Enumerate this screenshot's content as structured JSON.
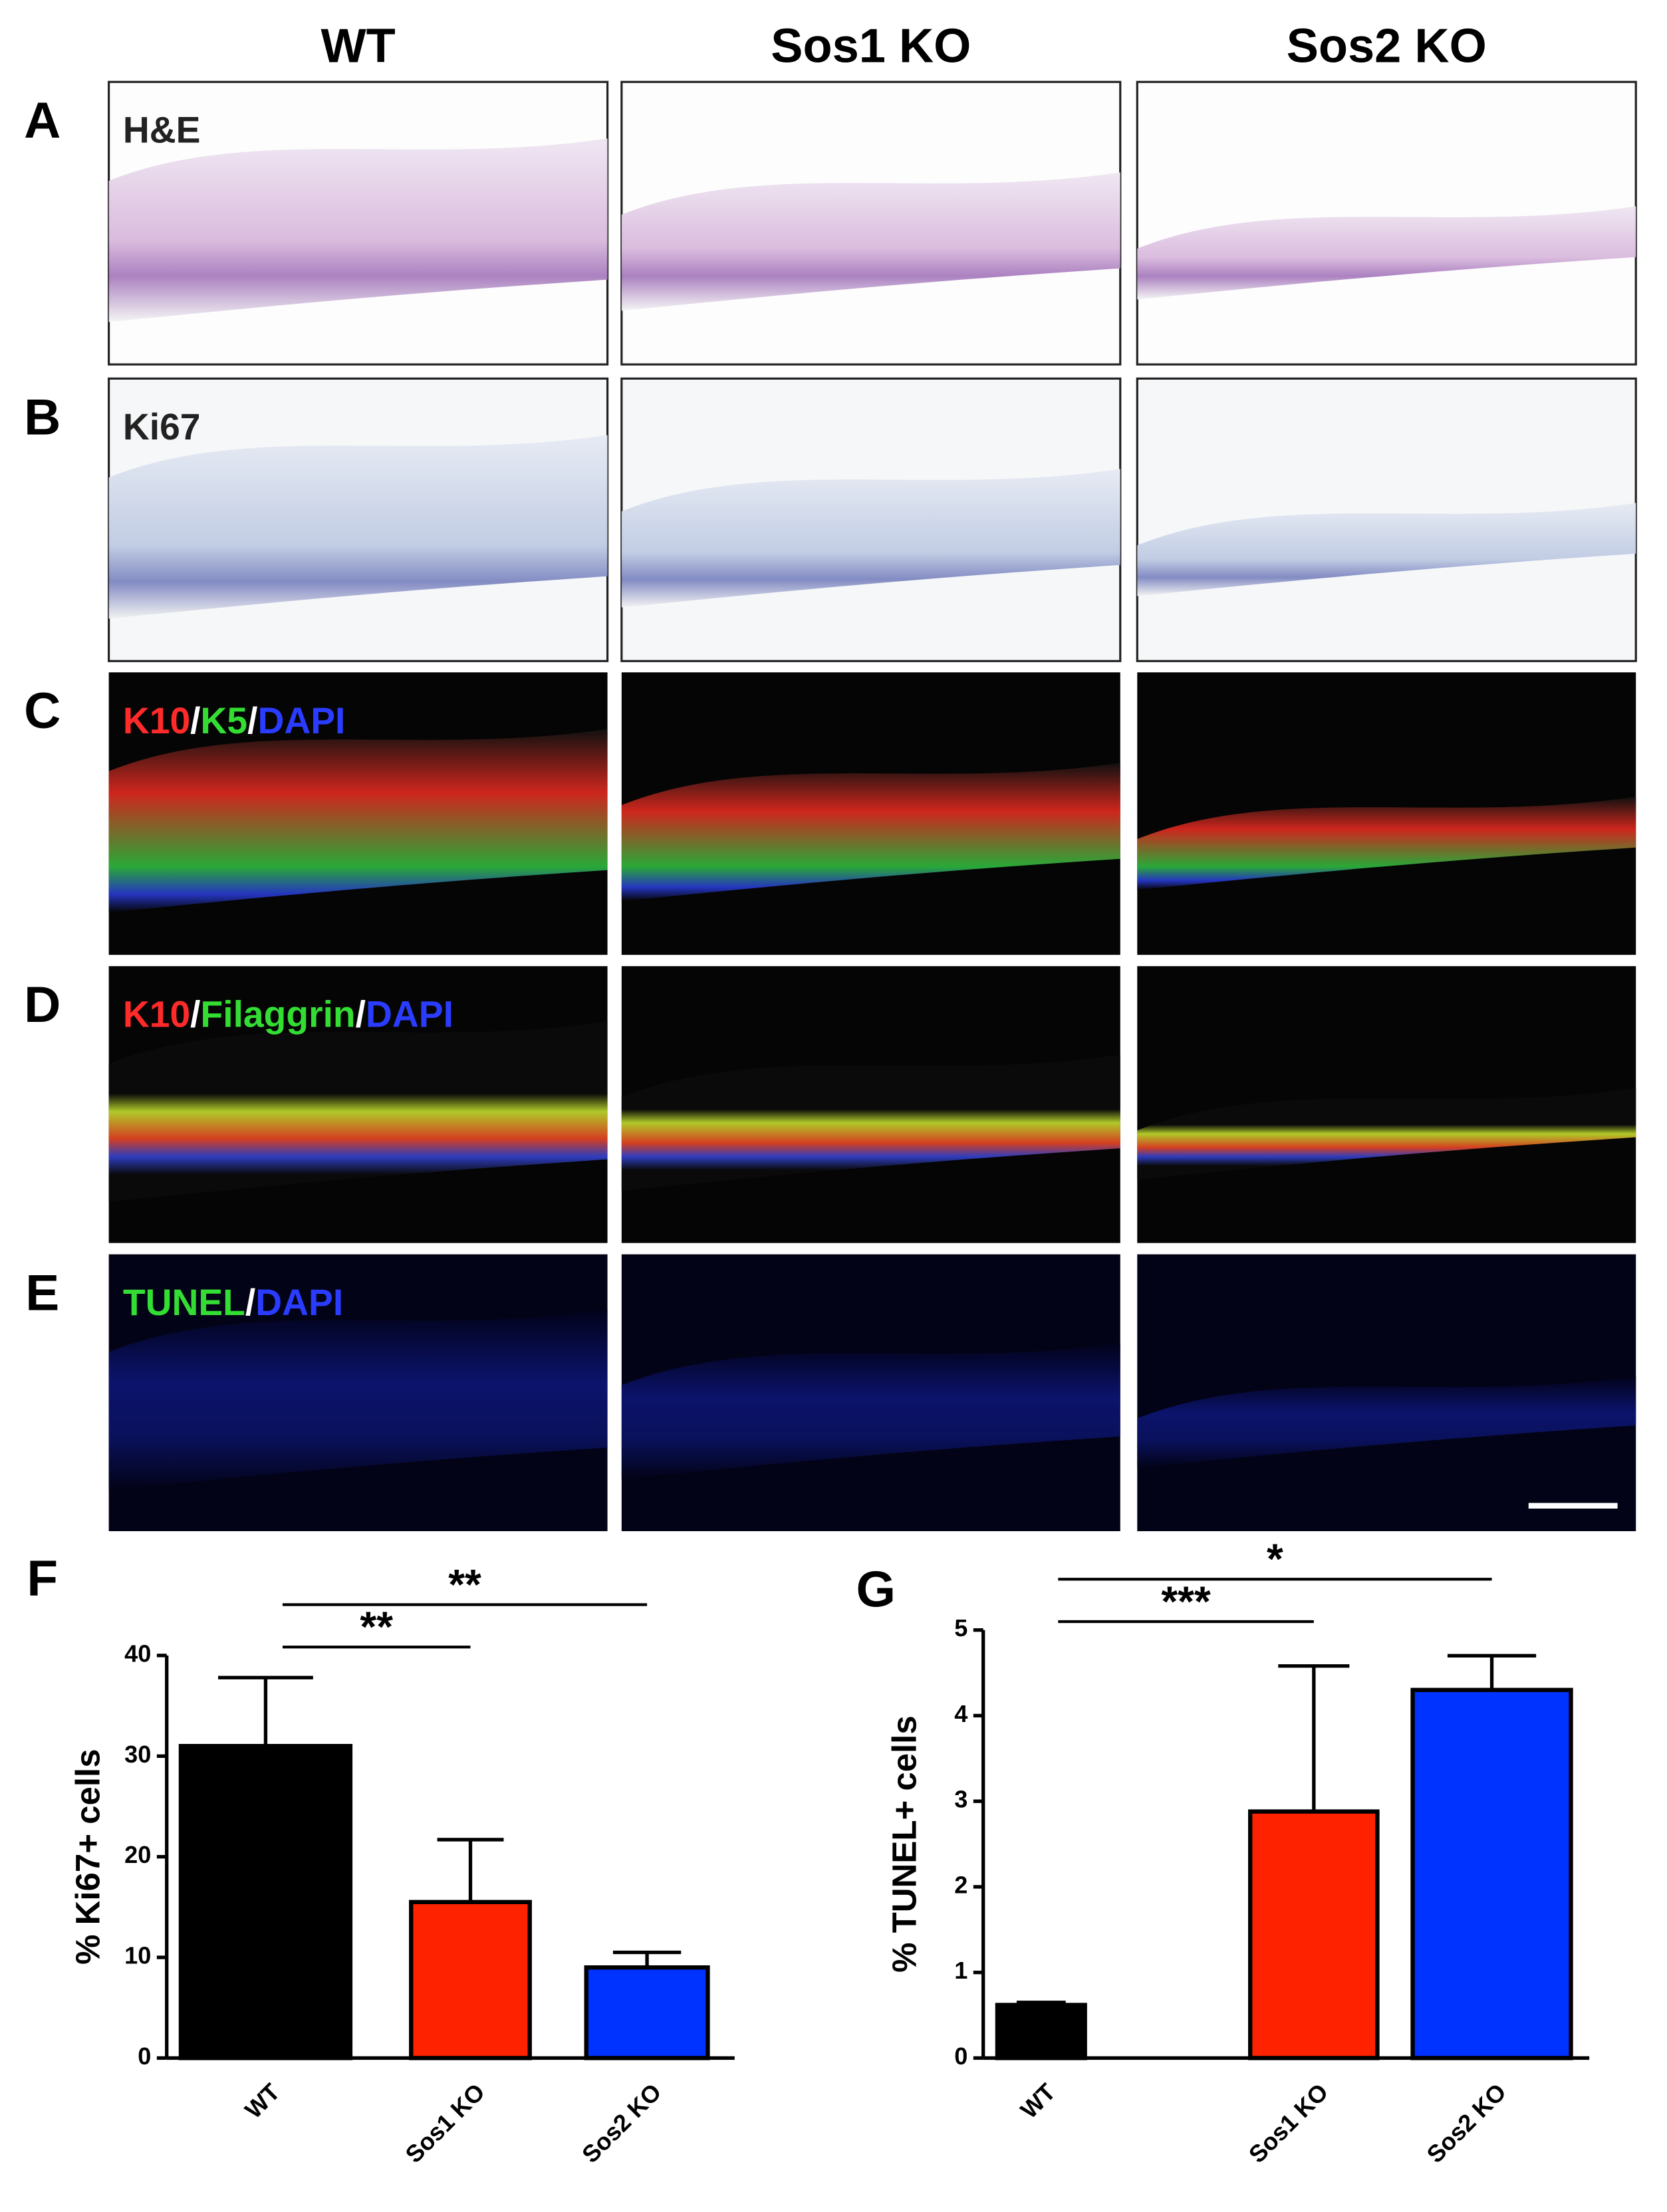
{
  "columns": [
    "WT",
    "Sos1 KO",
    "Sos2 KO"
  ],
  "panels": [
    {
      "letter": "A",
      "stain": [
        {
          "text": "H&E",
          "color": "#222222"
        }
      ]
    },
    {
      "letter": "B",
      "stain": [
        {
          "text": "Ki67",
          "color": "#222222"
        }
      ]
    },
    {
      "letter": "C",
      "stain": [
        {
          "text": "K10",
          "color": "#ff2a2a"
        },
        {
          "text": "/",
          "color": "#ffffff"
        },
        {
          "text": "K5",
          "color": "#33dd33"
        },
        {
          "text": "/",
          "color": "#ffffff"
        },
        {
          "text": "DAPI",
          "color": "#2a3cff"
        }
      ]
    },
    {
      "letter": "D",
      "stain": [
        {
          "text": "K10",
          "color": "#ff2a2a"
        },
        {
          "text": "/",
          "color": "#ffffff"
        },
        {
          "text": "Filaggrin",
          "color": "#33dd33"
        },
        {
          "text": "/",
          "color": "#ffffff"
        },
        {
          "text": "DAPI",
          "color": "#2a3cff"
        }
      ]
    },
    {
      "letter": "E",
      "stain": [
        {
          "text": "TUNEL",
          "color": "#33dd33"
        },
        {
          "text": "/",
          "color": "#ffffff"
        },
        {
          "text": "DAPI",
          "color": "#2a3cff"
        }
      ]
    }
  ],
  "chart_data": [
    {
      "type": "bar",
      "letter": "F",
      "y_label": "% Ki67+ cells",
      "categories": [
        "WT",
        "Sos1 KO",
        "Sos2 KO"
      ],
      "values": [
        31,
        15.5,
        9
      ],
      "errors": [
        6.8,
        6.2,
        1.5
      ],
      "colors": [
        "#000000",
        "#ff2200",
        "#0033ff"
      ],
      "ylim": [
        0,
        40
      ],
      "yticks": [
        0,
        10,
        20,
        30,
        40
      ],
      "annotations": [
        "**",
        "**"
      ]
    },
    {
      "type": "bar",
      "letter": "G",
      "y_label": "% TUNEL+ cells",
      "categories": [
        "WT",
        "Sos1 KO",
        "Sos2 KO"
      ],
      "values": [
        0.62,
        2.88,
        4.3
      ],
      "errors": [
        0.03,
        1.7,
        0.4
      ],
      "colors": [
        "#000000",
        "#ff2200",
        "#0033ff"
      ],
      "ylim": [
        0,
        5
      ],
      "yticks": [
        0,
        1,
        2,
        3,
        4,
        5
      ],
      "annotations": [
        "*",
        "***"
      ]
    }
  ]
}
